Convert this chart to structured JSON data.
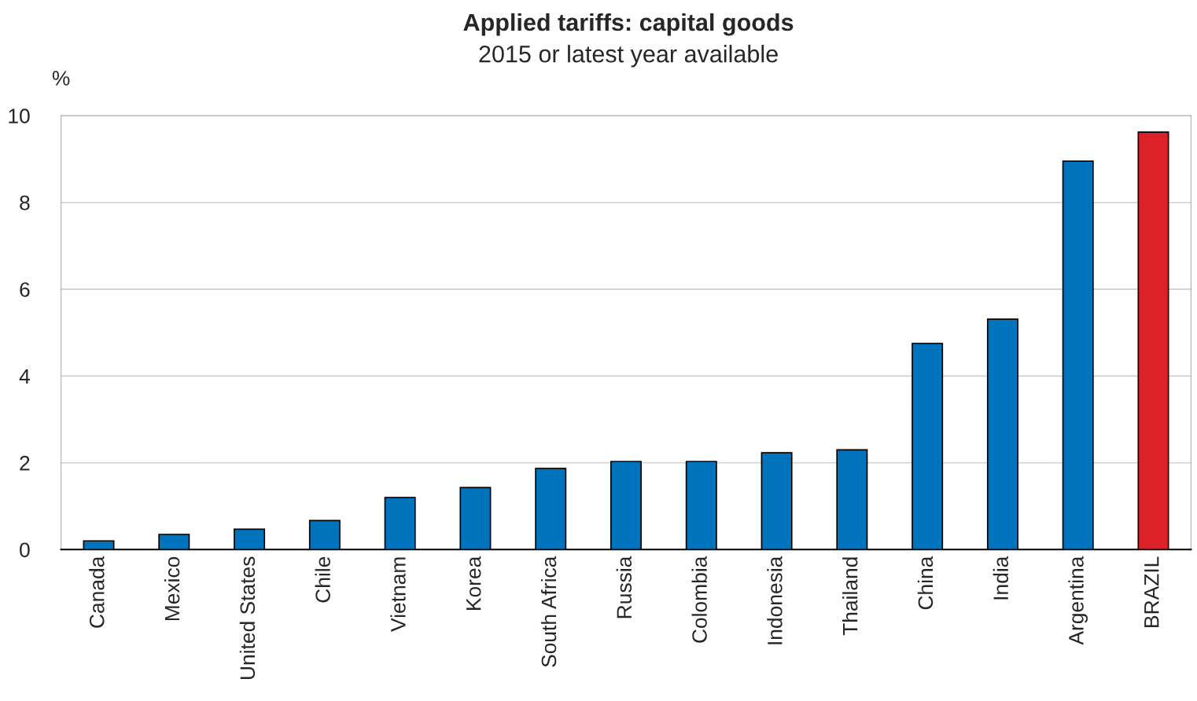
{
  "chart_data": {
    "type": "bar",
    "title": "Applied tariffs: capital goods",
    "subtitle": "2015 or latest year available",
    "ylabel": "%",
    "categories": [
      "Canada",
      "Mexico",
      "United States",
      "Chile",
      "Vietnam",
      "Korea",
      "South Africa",
      "Russia",
      "Colombia",
      "Indonesia",
      "Thailand",
      "China",
      "India",
      "Argentina",
      "BRAZIL"
    ],
    "values": [
      0.2,
      0.35,
      0.47,
      0.67,
      1.2,
      1.43,
      1.87,
      2.03,
      2.03,
      2.23,
      2.3,
      4.75,
      5.31,
      8.95,
      9.62
    ],
    "colors": [
      "#0073bd",
      "#0073bd",
      "#0073bd",
      "#0073bd",
      "#0073bd",
      "#0073bd",
      "#0073bd",
      "#0073bd",
      "#0073bd",
      "#0073bd",
      "#0073bd",
      "#0073bd",
      "#0073bd",
      "#0073bd",
      "#dc2128"
    ],
    "ylim": [
      0,
      10
    ],
    "yticks": [
      0,
      2,
      4,
      6,
      8,
      10
    ],
    "grid": "y",
    "legend": false
  }
}
